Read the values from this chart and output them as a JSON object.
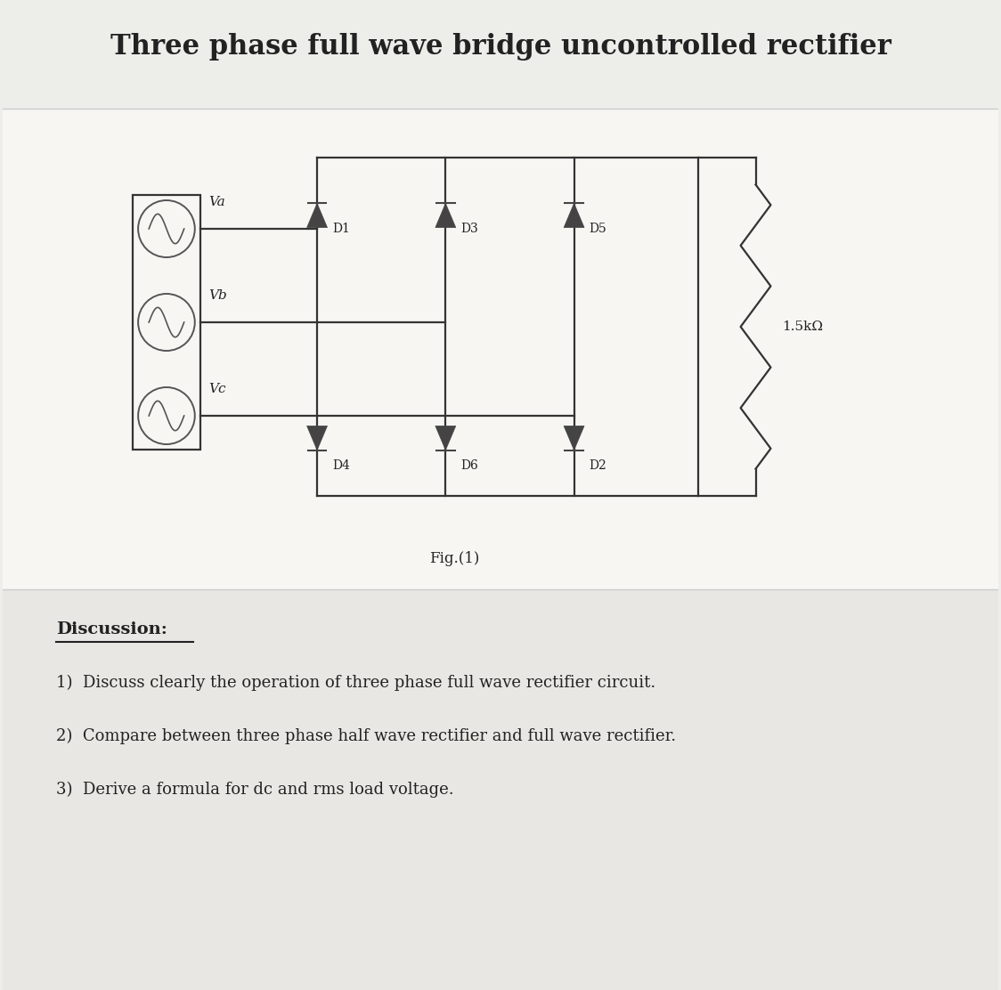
{
  "title": "Three phase full wave bridge uncontrolled rectifier",
  "title_fontsize": 22,
  "title_fontweight": "bold",
  "bg_color": "#ededea",
  "circuit_bg": "#ffffff",
  "discussion_header": "Discussion:",
  "discussion_items": [
    "1)  Discuss clearly the operation of three phase full wave rectifier circuit.",
    "2)  Compare between three phase half wave rectifier and full wave rectifier.",
    "3)  Derive a formula for dc and rms load voltage."
  ],
  "source_labels": [
    "Va",
    "Vb",
    "Vc"
  ],
  "top_diodes": [
    "D1",
    "D3",
    "D5"
  ],
  "bottom_diodes": [
    "D4",
    "D6",
    "D2"
  ],
  "resistor_label": "1.5kΩ",
  "fig_label": "Fig.(1)",
  "line_color": "#333333",
  "diode_color": "#444444",
  "text_color": "#222222"
}
